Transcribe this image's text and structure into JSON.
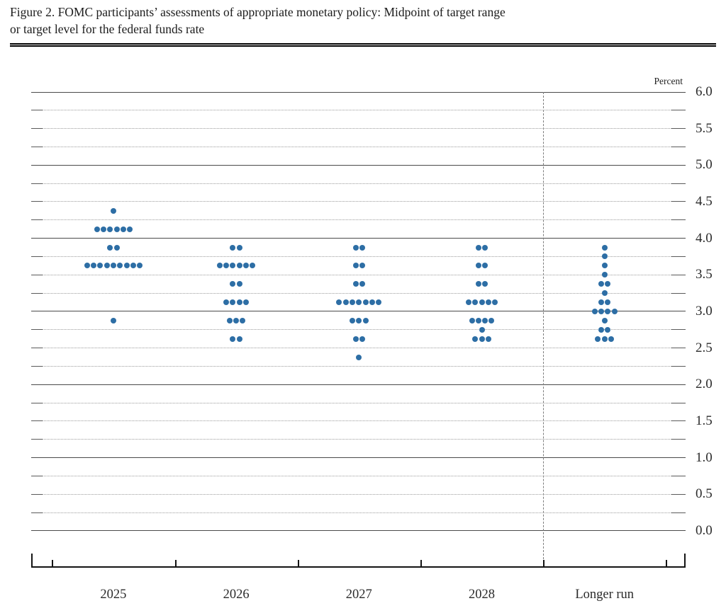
{
  "figure": {
    "title_line1": "Figure 2. FOMC participants’ assessments of appropriate monetary policy: Midpoint of target range",
    "title_line2": "or target level for the federal funds rate"
  },
  "chart_data": {
    "type": "scatter",
    "subtype": "fomc-dot-plot",
    "title": "FOMC participants’ assessments of appropriate monetary policy: Midpoint of target range or target level for the federal funds rate",
    "ylabel": "Percent",
    "xlabel": "",
    "categories": [
      "2025",
      "2026",
      "2027",
      "2028",
      "Longer run"
    ],
    "y_axis": {
      "min": 0.0,
      "max": 6.0,
      "label_step": 0.5,
      "grid_step": 0.25,
      "solid_grid_step": 1.0,
      "tick_labels": [
        "6.0",
        "5.5",
        "5.0",
        "4.5",
        "4.0",
        "3.5",
        "3.0",
        "2.5",
        "2.0",
        "1.5",
        "1.0",
        "0.5",
        "0.0"
      ]
    },
    "layout": {
      "grid": "dotted quarter-percent lines, solid whole-percent lines",
      "legend": "none",
      "separator_dashed_before": "Longer run"
    },
    "colors": {
      "dot": "#2D6EA5",
      "solid_grid": "#4a4a4a",
      "dotted_grid": "#9c9c9c",
      "grid_cap": "#5a5a5a",
      "axis": "#141414",
      "text": "#2b2b2b"
    },
    "participants_per_column": 19,
    "dots": [
      {
        "category": "2025",
        "rate": 4.375,
        "count": 1
      },
      {
        "category": "2025",
        "rate": 4.125,
        "count": 6
      },
      {
        "category": "2025",
        "rate": 3.875,
        "count": 2
      },
      {
        "category": "2025",
        "rate": 3.625,
        "count": 9
      },
      {
        "category": "2025",
        "rate": 2.875,
        "count": 1
      },
      {
        "category": "2026",
        "rate": 3.875,
        "count": 2
      },
      {
        "category": "2026",
        "rate": 3.625,
        "count": 6
      },
      {
        "category": "2026",
        "rate": 3.375,
        "count": 2
      },
      {
        "category": "2026",
        "rate": 3.125,
        "count": 4
      },
      {
        "category": "2026",
        "rate": 2.875,
        "count": 3
      },
      {
        "category": "2026",
        "rate": 2.625,
        "count": 2
      },
      {
        "category": "2027",
        "rate": 3.875,
        "count": 2
      },
      {
        "category": "2027",
        "rate": 3.625,
        "count": 2
      },
      {
        "category": "2027",
        "rate": 3.375,
        "count": 2
      },
      {
        "category": "2027",
        "rate": 3.125,
        "count": 7
      },
      {
        "category": "2027",
        "rate": 2.875,
        "count": 3
      },
      {
        "category": "2027",
        "rate": 2.625,
        "count": 2
      },
      {
        "category": "2027",
        "rate": 2.375,
        "count": 1
      },
      {
        "category": "2028",
        "rate": 3.875,
        "count": 2
      },
      {
        "category": "2028",
        "rate": 3.625,
        "count": 2
      },
      {
        "category": "2028",
        "rate": 3.375,
        "count": 2
      },
      {
        "category": "2028",
        "rate": 3.125,
        "count": 5
      },
      {
        "category": "2028",
        "rate": 2.875,
        "count": 4
      },
      {
        "category": "2028",
        "rate": 2.75,
        "count": 1
      },
      {
        "category": "2028",
        "rate": 2.625,
        "count": 3
      },
      {
        "category": "Longer run",
        "rate": 3.875,
        "count": 1
      },
      {
        "category": "Longer run",
        "rate": 3.75,
        "count": 1
      },
      {
        "category": "Longer run",
        "rate": 3.625,
        "count": 1
      },
      {
        "category": "Longer run",
        "rate": 3.5,
        "count": 1
      },
      {
        "category": "Longer run",
        "rate": 3.375,
        "count": 2
      },
      {
        "category": "Longer run",
        "rate": 3.25,
        "count": 1
      },
      {
        "category": "Longer run",
        "rate": 3.125,
        "count": 2
      },
      {
        "category": "Longer run",
        "rate": 3.0,
        "count": 4
      },
      {
        "category": "Longer run",
        "rate": 2.875,
        "count": 1
      },
      {
        "category": "Longer run",
        "rate": 2.75,
        "count": 2
      },
      {
        "category": "Longer run",
        "rate": 2.625,
        "count": 3
      }
    ]
  }
}
